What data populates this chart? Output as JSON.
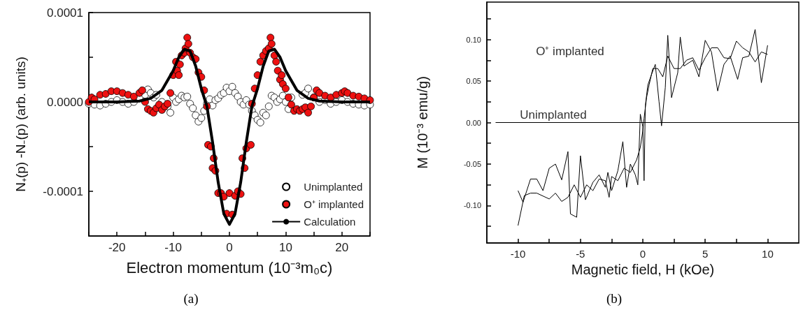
{
  "chart_data": [
    {
      "type": "scatter",
      "xlabel": "Electron momentum (10⁻³m₀c)",
      "ylabel": "N₊(p) -N₋(p) (arb. units)",
      "xlim": [
        -25,
        25
      ],
      "ylim": [
        -0.00015,
        0.0001
      ],
      "xticks": [
        {
          "value": -25,
          "label": null
        },
        -20,
        {
          "value": -15,
          "label": null
        },
        -10,
        {
          "value": -5,
          "label": null
        },
        0,
        {
          "value": 5,
          "label": null
        },
        10,
        {
          "value": 15,
          "label": null
        },
        20,
        {
          "value": 25,
          "label": null
        }
      ],
      "yticks": [
        {
          "value": -0.0001,
          "label": "-0.0001"
        },
        {
          "value": -5e-05,
          "label": null
        },
        {
          "value": 0,
          "label": "0.0000"
        },
        {
          "value": 5e-05,
          "label": null
        },
        {
          "value": 0.0001,
          "label": "0.0001"
        }
      ],
      "legend": "bottom right",
      "marker": "circle",
      "annotations": [
        "(a)"
      ],
      "series": [
        {
          "name": "Unimplanted",
          "color": "#ffffff",
          "x": [
            -25,
            -24,
            -23,
            -22,
            -21,
            -20,
            -19,
            -18,
            -17,
            -16,
            -15,
            -14.5,
            -14,
            -13.5,
            -13,
            -12,
            -11,
            -10.5,
            -10,
            -9.5,
            -9,
            -8.5,
            -8,
            -7.5,
            -7,
            -6.5,
            -6,
            -5.5,
            -5,
            -4.5,
            -4,
            -3.5,
            -3,
            -2.5,
            -2,
            -1.5,
            -1,
            -0.5,
            0,
            0.5,
            1,
            1.5,
            2,
            2.5,
            3,
            3.5,
            4,
            4.5,
            5,
            5.5,
            6,
            6.5,
            7,
            7.5,
            8,
            8.5,
            9,
            9.5,
            10,
            10.5,
            11,
            12,
            13,
            13.5,
            14,
            15,
            16,
            17,
            18,
            19,
            20,
            21,
            22,
            23,
            24,
            25
          ],
          "values": [
            -2e-06,
            -3e-06,
            -4e-06,
            -2e-06,
            0,
            2e-06,
            0,
            -2e-06,
            0,
            5e-06,
            8e-06,
            1.4e-05,
            1e-05,
            5e-06,
            8e-06,
            0,
            -5e-06,
            -1.2e-05,
            5e-06,
            0,
            3e-06,
            7e-06,
            5e-06,
            6e-06,
            -2e-06,
            -7e-06,
            -1.5e-05,
            -2.2e-05,
            -1.8e-05,
            -1e-05,
            -2e-06,
            3e-06,
            -4e-06,
            2e-06,
            4e-06,
            8e-06,
            1e-05,
            1.6e-05,
            1.2e-05,
            1.7e-05,
            1e-05,
            6e-06,
            0,
            -3e-06,
            2e-06,
            -3e-06,
            -1e-05,
            -1.5e-05,
            -2e-05,
            -2.3e-05,
            -1.2e-05,
            -1.5e-05,
            -5e-06,
            7e-06,
            5e-06,
            0,
            3e-06,
            7e-06,
            0,
            -8e-06,
            5e-06,
            null,
            8e-06,
            1e-05,
            1.5e-05,
            5e-06,
            0,
            2e-06,
            -2e-06,
            0,
            2e-06,
            0,
            -2e-06,
            -3e-06,
            -4e-06,
            -3e-06
          ]
        },
        {
          "name": "O⁺ implanted",
          "color": "#ee1111",
          "x": [
            -25,
            -24.5,
            -24,
            -23,
            -22,
            -21,
            -20,
            -19,
            -18,
            -17,
            -16,
            -15.5,
            -15,
            -14.5,
            -14,
            -13.5,
            -13,
            -12.5,
            -12,
            -11.5,
            -11,
            -10.5,
            -10,
            -9.5,
            -9.3,
            -9,
            -8.8,
            -8.5,
            -8,
            -7.8,
            -7.5,
            -7.3,
            -7,
            -6.5,
            -6,
            -5.5,
            -5,
            -4.5,
            -4,
            -3.8,
            -3.3,
            -2.8,
            -3,
            -2.5,
            -2,
            -1.5,
            -1,
            -0.5,
            0,
            0.5,
            1,
            1.5,
            2,
            2.3,
            2.7,
            3,
            3.8,
            4,
            4.5,
            5,
            5.5,
            6,
            6.5,
            7,
            7.3,
            7.5,
            8,
            8.3,
            8.6,
            9,
            9.3,
            9.5,
            10,
            10.5,
            11,
            11.5,
            12,
            12.5,
            13,
            13.5,
            14,
            14.5,
            15,
            15.5,
            16,
            17,
            18,
            19,
            20,
            20.5,
            21,
            22,
            23,
            24,
            25
          ],
          "values": [
            0,
            5e-06,
            3e-06,
            8e-06,
            9e-06,
            1.2e-05,
            1.2e-05,
            1e-05,
            8e-06,
            6e-06,
            1e-05,
            1.3e-05,
            0,
            -8e-06,
            -1e-05,
            -1.2e-05,
            -7e-06,
            -3e-06,
            -9e-06,
            -5e-06,
            -2e-06,
            1e-05,
            3e-05,
            4.5e-05,
            3.5e-05,
            3e-05,
            4.2e-05,
            5.2e-05,
            5.5e-05,
            6e-05,
            7.2e-05,
            6.5e-05,
            5.5e-05,
            5e-05,
            4.8e-05,
            3.3e-05,
            2.8e-05,
            1.3e-05,
            -5e-06,
            -4.8e-05,
            -5e-05,
            -6.3e-05,
            -7.4e-05,
            -7.7e-05,
            -0.000102,
            -0.000102,
            -0.000106,
            -0.000125,
            -0.000102,
            -0.000126,
            -0.000105,
            -0.0001,
            -0.000103,
            -6.3e-05,
            -7.4e-05,
            -5.2e-05,
            -4.8e-05,
            -2e-06,
            1.5e-05,
            3e-05,
            4.5e-05,
            5.2e-05,
            5.7e-05,
            6e-05,
            7.2e-05,
            6.5e-05,
            5.2e-05,
            4.5e-05,
            3.5e-05,
            2.5e-05,
            3e-05,
            2e-05,
            1.5e-05,
            5e-06,
            -3e-06,
            -1e-05,
            -8e-06,
            -1e-05,
            -8e-06,
            -6e-06,
            -1.2e-05,
            -5e-06,
            5e-06,
            1.3e-05,
            1e-05,
            7e-06,
            5e-06,
            8e-06,
            1e-05,
            1.2e-05,
            1e-05,
            7e-06,
            6e-06,
            4e-06,
            2e-06
          ]
        },
        {
          "name": "Calculation",
          "type": "line",
          "marker": "none",
          "color": "#000000",
          "x": [
            -25,
            -20,
            -16,
            -14,
            -12,
            -10,
            -9,
            -8,
            -7,
            -6,
            -5,
            -4,
            -3,
            -2,
            -1,
            0,
            1,
            2,
            3,
            4,
            5,
            6,
            7,
            8,
            9,
            10,
            12,
            14,
            16,
            20,
            25
          ],
          "values": [
            0,
            0,
            1e-06,
            4e-06,
            1.3e-05,
            3.5e-05,
            5e-05,
            5.9e-05,
            5.7e-05,
            4e-05,
            1.5e-05,
            -5e-06,
            -4.5e-05,
            -9e-05,
            -0.000125,
            -0.000137,
            -0.000125,
            -9e-05,
            -4.5e-05,
            -5e-06,
            1.5e-05,
            4e-05,
            5.7e-05,
            5.9e-05,
            5e-05,
            3.5e-05,
            1.3e-05,
            4e-06,
            1e-06,
            0,
            0
          ]
        }
      ]
    },
    {
      "type": "line",
      "xlabel": "Magnetic field, H (kOe)",
      "ylabel": "M (10⁻³ emu/g)",
      "xlim": [
        -12.5,
        12.5
      ],
      "ylim": [
        -0.145,
        0.145
      ],
      "xticks": [
        -10,
        {
          "value": -7.5,
          "label": null
        },
        -5,
        {
          "value": -2.5,
          "label": null
        },
        0,
        {
          "value": 2.5,
          "label": null
        },
        5,
        {
          "value": 7.5,
          "label": null
        },
        10
      ],
      "yticks": [
        {
          "value": -0.125,
          "label": null
        },
        {
          "value": -0.1,
          "label": "-0.10"
        },
        {
          "value": -0.075,
          "label": null
        },
        {
          "value": -0.05,
          "label": "-0.05"
        },
        {
          "value": -0.025,
          "label": null
        },
        {
          "value": 0,
          "label": "0.00"
        },
        {
          "value": 0.025,
          "label": null
        },
        {
          "value": 0.05,
          "label": "0.05"
        },
        {
          "value": 0.075,
          "label": null
        },
        {
          "value": 0.1,
          "label": "0.10"
        },
        {
          "value": 0.125,
          "label": null
        }
      ],
      "marker": "none",
      "legend": false,
      "annotations": [
        "O⁺ implanted",
        "Unimplanted",
        "(b)"
      ],
      "series": [
        {
          "color": "#000000",
          "x": [
            -10,
            -9.6,
            -9,
            -8.5,
            -8,
            -7.5,
            -7,
            -6.5,
            -6,
            -5.8,
            -5.3,
            -5,
            -4.6,
            -4,
            -3.5,
            -3,
            -2.8,
            -2.5,
            -2,
            -1.6,
            -1.3,
            -1,
            -0.6,
            -0.4,
            -0.2,
            0,
            0.1,
            0.2,
            0.4,
            0.7,
            1,
            1.3,
            1.5,
            1.8,
            2,
            2.3,
            2.8,
            3,
            3.3,
            4,
            4.5,
            5,
            5.5,
            6,
            6.5,
            7,
            7.6,
            8,
            8.5,
            9,
            9.5,
            10
          ],
          "values": [
            -0.082,
            -0.096,
            -0.068,
            -0.068,
            -0.082,
            -0.055,
            -0.05,
            -0.069,
            -0.035,
            -0.11,
            -0.114,
            -0.04,
            -0.093,
            -0.072,
            -0.063,
            -0.078,
            -0.06,
            -0.082,
            -0.058,
            -0.023,
            -0.078,
            -0.05,
            -0.063,
            -0.075,
            0.01,
            -0.005,
            -0.07,
            0.02,
            0.045,
            0.058,
            0.07,
            0.025,
            -0.004,
            0.042,
            0.105,
            0.03,
            0.06,
            0.103,
            0.068,
            0.075,
            0.055,
            0.099,
            0.085,
            0.038,
            0.07,
            0.08,
            0.052,
            0.078,
            0.08,
            0.112,
            0.048,
            0.093
          ]
        },
        {
          "color": "#000000",
          "x": [
            -10,
            -9.5,
            -9,
            -8.5,
            -7.5,
            -7,
            -6.5,
            -6,
            -5.5,
            -5,
            -4.5,
            -4,
            -3.5,
            -3,
            -2.7,
            -2.5,
            -2,
            -1.5,
            -1,
            -0.5,
            -0.2,
            0,
            0.1,
            0.3,
            0.5,
            0.8,
            1.2,
            1.6,
            2,
            2.5,
            3,
            3.5,
            4,
            4.5,
            5,
            5.5,
            6,
            6.5,
            7,
            7.5,
            8,
            8.5,
            9,
            9.5,
            10
          ],
          "values": [
            -0.124,
            -0.088,
            -0.085,
            -0.085,
            -0.092,
            -0.085,
            -0.095,
            -0.09,
            -0.075,
            -0.09,
            -0.075,
            -0.082,
            -0.068,
            -0.07,
            -0.09,
            -0.065,
            -0.07,
            -0.055,
            -0.06,
            -0.045,
            -0.03,
            -0.01,
            0.005,
            0.03,
            0.045,
            0.065,
            0.065,
            0.055,
            0.08,
            0.065,
            0.065,
            0.075,
            0.078,
            0.063,
            0.078,
            0.09,
            0.09,
            0.078,
            0.077,
            0.098,
            0.09,
            0.085,
            0.073,
            0.085,
            0.082
          ]
        },
        {
          "color": "#000000",
          "x": [
            -11.8,
            12.5
          ],
          "values": [
            0,
            0
          ]
        }
      ]
    }
  ]
}
